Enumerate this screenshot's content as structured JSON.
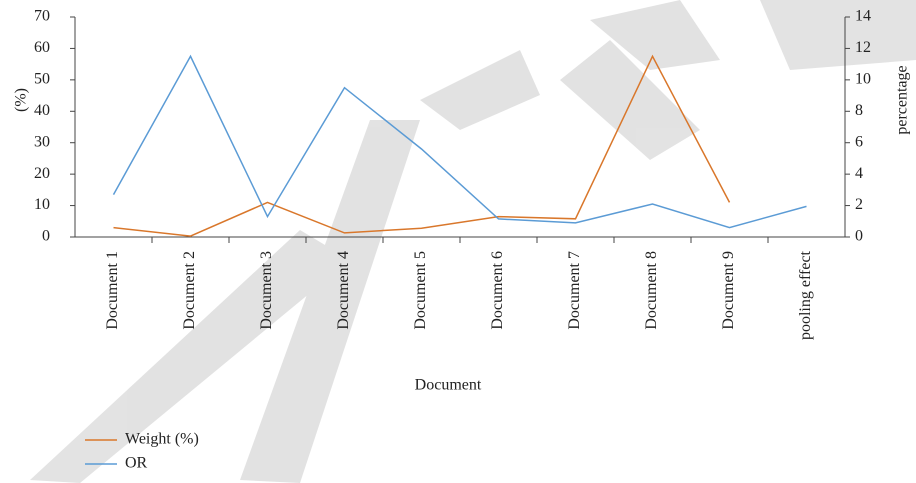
{
  "chart_data": {
    "type": "line",
    "x_label": "Document",
    "y_label": "(%)",
    "y2_label": "percentage",
    "categories": [
      "Document 1",
      "Document 2",
      "Document 3",
      "Document 4",
      "Document 5",
      "Document 6",
      "Document 7",
      "Document 8",
      "Document 9",
      "pooling effect"
    ],
    "series": [
      {
        "name": "Weight (%)",
        "color": "#d9772b",
        "values": [
          3,
          0.3,
          11,
          1.3,
          2.8,
          6.5,
          5.8,
          57.5,
          11,
          null
        ]
      },
      {
        "name": "OR",
        "color": "#5b9bd5",
        "axis": "y2",
        "values": [
          2.7,
          11.5,
          1.3,
          9.5,
          5.6,
          1.15,
          0.9,
          2.1,
          0.6,
          1.95
        ]
      }
    ],
    "ylim": [
      0,
      70
    ],
    "yticks": [
      0,
      10,
      20,
      30,
      40,
      50,
      60,
      70
    ],
    "y2lim": [
      0,
      14
    ],
    "y2ticks": [
      0,
      2,
      4,
      6,
      8,
      10,
      12,
      14
    ],
    "legend": "bottom-left"
  }
}
